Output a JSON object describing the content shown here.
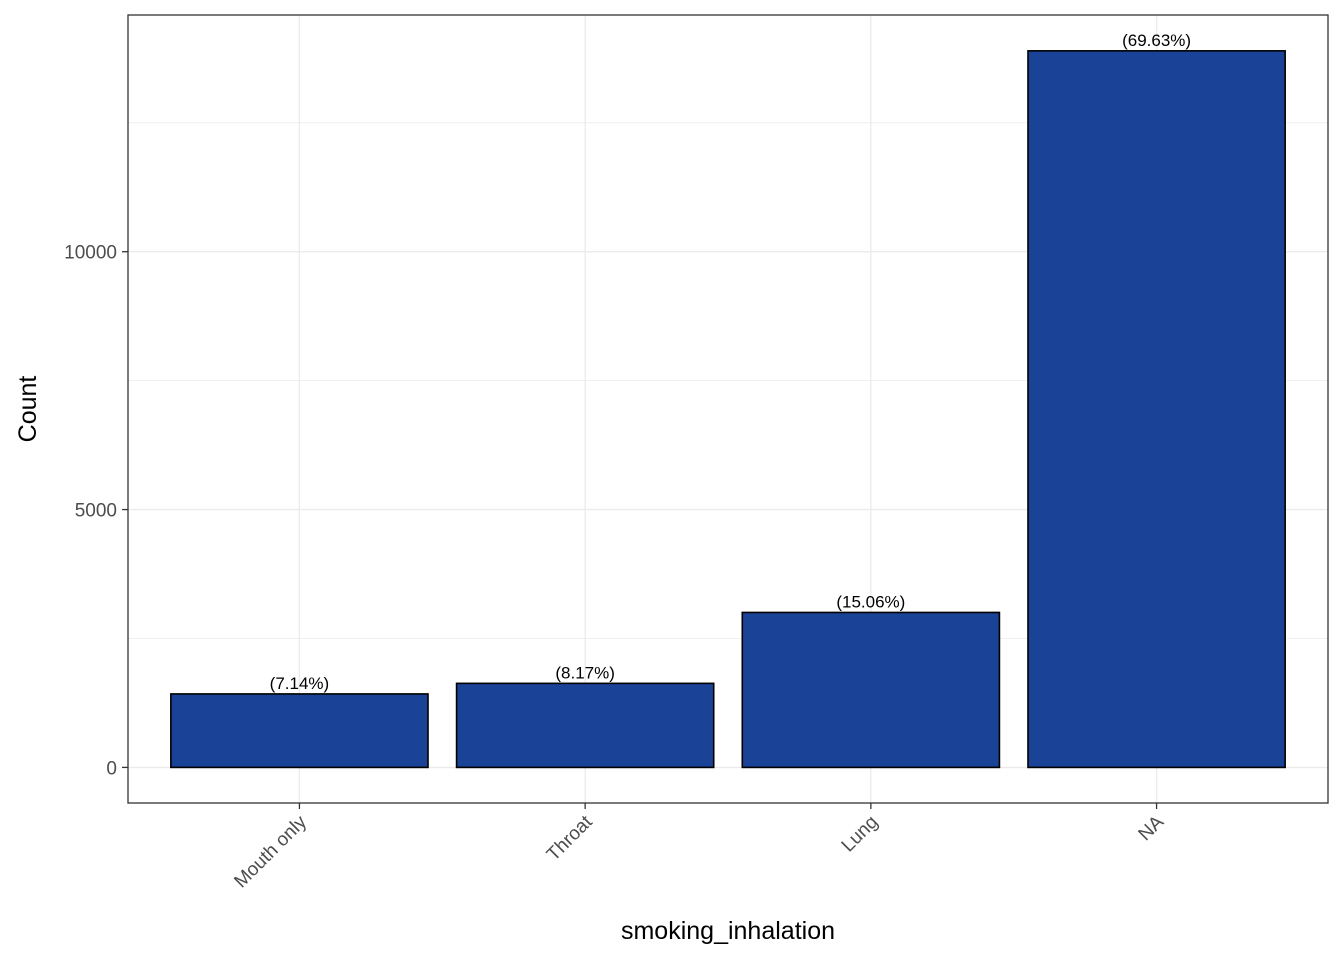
{
  "chart_data": {
    "type": "bar",
    "categories": [
      "Mouth only",
      "Throat",
      "Lung",
      "NA"
    ],
    "values": [
      1425,
      1630,
      3005,
      13895
    ],
    "data_labels": [
      "(7.14%)",
      "(8.17%)",
      "(15.06%)",
      "(69.63%)"
    ],
    "title": "",
    "xlabel": "smoking_inhalation",
    "ylabel": "Count",
    "ylim": [
      -690,
      14590
    ],
    "yticks": [
      0,
      5000,
      10000
    ],
    "ytick_labels": [
      "0",
      "5000",
      "10000"
    ],
    "grid": true,
    "bar_color": "#1a4397",
    "bar_edge_color": "#000000",
    "grid_color": "#ebebeb"
  }
}
